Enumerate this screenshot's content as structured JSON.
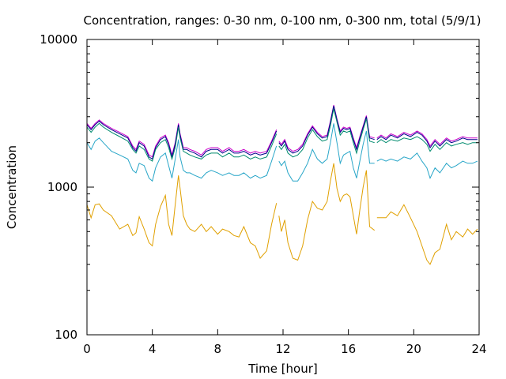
{
  "chart_data": {
    "type": "line",
    "title": "Concentration, ranges: 0-30 nm, 0-100 nm, 0-300 nm, total (5/9/1)",
    "xlabel": "Time [hour]",
    "ylabel": "Concentration",
    "xlim": [
      0,
      24
    ],
    "ylim": [
      100,
      10000
    ],
    "yscale": "log",
    "grid": false,
    "legend": "none",
    "x_ticks": [
      "0",
      "4",
      "8",
      "12",
      "16",
      "20",
      "24"
    ],
    "y_ticks": [
      "100",
      "1000",
      "10000"
    ],
    "gaps": [
      [
        11.6,
        11.75
      ],
      [
        17.6,
        17.75
      ]
    ],
    "x": [
      0,
      0.25,
      0.5,
      0.75,
      1,
      1.5,
      2,
      2.5,
      2.8,
      3,
      3.2,
      3.5,
      3.8,
      4,
      4.2,
      4.5,
      4.8,
      5,
      5.2,
      5.4,
      5.6,
      5.7,
      5.9,
      6.1,
      6.3,
      6.6,
      7,
      7.3,
      7.6,
      8,
      8.3,
      8.7,
      9,
      9.3,
      9.6,
      10,
      10.3,
      10.6,
      11,
      11.3,
      11.6,
      11.75,
      11.9,
      12.1,
      12.3,
      12.6,
      12.9,
      13.2,
      13.5,
      13.8,
      14.1,
      14.4,
      14.7,
      14.9,
      15.1,
      15.3,
      15.5,
      15.7,
      15.9,
      16.1,
      16.3,
      16.5,
      16.7,
      16.9,
      17.1,
      17.3,
      17.6,
      17.75,
      18,
      18.3,
      18.6,
      19,
      19.4,
      19.8,
      20.2,
      20.5,
      20.8,
      21,
      21.3,
      21.6,
      22,
      22.3,
      22.6,
      23,
      23.3,
      23.6,
      23.9
    ],
    "series": [
      {
        "color": "#cc00cc",
        "values": [
          2700,
          2500,
          2700,
          2850,
          2700,
          2500,
          2350,
          2200,
          1900,
          1800,
          2050,
          1950,
          1650,
          1600,
          1900,
          2150,
          2250,
          2000,
          1650,
          2000,
          2700,
          2300,
          1850,
          1850,
          1800,
          1750,
          1650,
          1800,
          1850,
          1850,
          1750,
          1850,
          1750,
          1750,
          1800,
          1700,
          1750,
          1700,
          1750,
          2050,
          2450,
          2050,
          1950,
          2100,
          1850,
          1750,
          1800,
          1950,
          2300,
          2600,
          2350,
          2200,
          2250,
          2800,
          3600,
          2900,
          2400,
          2550,
          2500,
          2550,
          2150,
          1850,
          2200,
          2600,
          3050,
          2200,
          2150,
          2150,
          2250,
          2150,
          2300,
          2200,
          2350,
          2250,
          2400,
          2300,
          2100,
          1900,
          2100,
          1950,
          2150,
          2050,
          2100,
          2200,
          2150,
          2150,
          2150
        ]
      },
      {
        "color": "#00008b",
        "values": [
          2650,
          2450,
          2650,
          2800,
          2650,
          2450,
          2300,
          2150,
          1850,
          1750,
          2000,
          1900,
          1600,
          1550,
          1850,
          2100,
          2200,
          1950,
          1600,
          1950,
          2650,
          2250,
          1800,
          1800,
          1750,
          1700,
          1600,
          1750,
          1800,
          1800,
          1700,
          1800,
          1700,
          1700,
          1750,
          1650,
          1700,
          1650,
          1700,
          2000,
          2400,
          2000,
          1900,
          2050,
          1800,
          1700,
          1750,
          1900,
          2250,
          2550,
          2300,
          2150,
          2200,
          2750,
          3550,
          2850,
          2350,
          2500,
          2450,
          2500,
          2100,
          1800,
          2150,
          2550,
          3000,
          2150,
          2100,
          2100,
          2200,
          2100,
          2250,
          2150,
          2300,
          2200,
          2350,
          2250,
          2050,
          1850,
          2050,
          1900,
          2100,
          2000,
          2050,
          2150,
          2100,
          2100,
          2100
        ]
      },
      {
        "color": "#008b6e",
        "values": [
          2550,
          2350,
          2550,
          2700,
          2550,
          2350,
          2200,
          2050,
          1800,
          1700,
          1900,
          1800,
          1550,
          1500,
          1800,
          2000,
          2100,
          1850,
          1550,
          1850,
          2550,
          2150,
          1750,
          1700,
          1650,
          1600,
          1550,
          1650,
          1700,
          1700,
          1600,
          1700,
          1600,
          1600,
          1650,
          1550,
          1600,
          1550,
          1600,
          1900,
          2300,
          1900,
          1800,
          1950,
          1700,
          1600,
          1650,
          1800,
          2150,
          2450,
          2200,
          2050,
          2100,
          2600,
          3400,
          2750,
          2250,
          2400,
          2350,
          2400,
          2000,
          1700,
          2050,
          2450,
          2900,
          2050,
          2000,
          2000,
          2100,
          2000,
          2100,
          2050,
          2150,
          2100,
          2200,
          2100,
          1950,
          1750,
          1950,
          1800,
          2000,
          1900,
          1950,
          2000,
          1950,
          2000,
          2000
        ]
      },
      {
        "color": "#28a6c8",
        "values": [
          2000,
          1800,
          2050,
          2150,
          2000,
          1750,
          1650,
          1550,
          1300,
          1250,
          1450,
          1400,
          1150,
          1100,
          1350,
          1600,
          1700,
          1400,
          1150,
          1550,
          2100,
          1600,
          1300,
          1250,
          1250,
          1200,
          1150,
          1250,
          1300,
          1250,
          1200,
          1250,
          1200,
          1200,
          1250,
          1150,
          1200,
          1150,
          1200,
          1500,
          1900,
          1500,
          1400,
          1500,
          1250,
          1100,
          1100,
          1250,
          1450,
          1800,
          1550,
          1450,
          1550,
          2000,
          2700,
          2000,
          1450,
          1650,
          1700,
          1750,
          1350,
          1150,
          1500,
          1950,
          2400,
          1450,
          1450,
          1500,
          1550,
          1500,
          1550,
          1500,
          1600,
          1550,
          1700,
          1500,
          1350,
          1150,
          1350,
          1250,
          1450,
          1350,
          1400,
          1500,
          1450,
          1450,
          1500
        ]
      },
      {
        "color": "#e0a000",
        "values": [
          760,
          620,
          760,
          770,
          700,
          640,
          520,
          560,
          470,
          490,
          630,
          520,
          420,
          400,
          560,
          740,
          880,
          560,
          470,
          760,
          1200,
          980,
          640,
          560,
          520,
          500,
          560,
          500,
          540,
          480,
          520,
          500,
          470,
          460,
          540,
          420,
          400,
          330,
          370,
          560,
          780,
          640,
          500,
          600,
          420,
          330,
          320,
          400,
          600,
          800,
          720,
          700,
          800,
          1100,
          1450,
          980,
          800,
          880,
          900,
          860,
          640,
          480,
          700,
          1000,
          1300,
          540,
          510,
          620,
          620,
          620,
          680,
          640,
          760,
          620,
          500,
          400,
          320,
          300,
          360,
          380,
          560,
          440,
          500,
          460,
          520,
          480,
          520
        ]
      }
    ]
  }
}
